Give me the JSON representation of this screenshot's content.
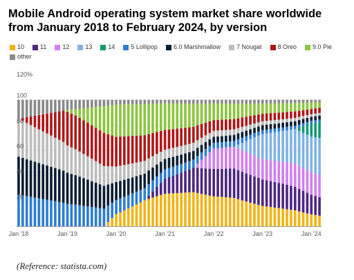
{
  "chart_data": {
    "type": "bar",
    "stacked": true,
    "title": "Mobile Android operating system market share worldwide from January 2018 to February 2024, by version",
    "xlabel": "",
    "ylabel": "",
    "ylim": [
      0,
      120
    ],
    "yticks": [
      20,
      40,
      60,
      80,
      100
    ],
    "ytick_labels": [
      "20",
      "40",
      "60",
      "80",
      "100"
    ],
    "ytop_label": "120%",
    "xtick_labels": [
      "Jan '18",
      "Jan '19",
      "Jan '20",
      "Jan '21",
      "Jan '22",
      "Jan '23",
      "Jan '24"
    ],
    "legend_position": "top",
    "grid": true,
    "source_note": "(Reference: statista.com)",
    "colors": {
      "5 Lollipop": "#2d7dd2",
      "6.0 Marshmallow": "#0b1e33",
      "7 Nougat": "#bcbcbc",
      "8 Oreo": "#b01717",
      "9.0 Pie": "#8cc63f",
      "10": "#f2b418",
      "11": "#4b2882",
      "12": "#d17ff0",
      "13": "#7fb2e6",
      "14": "#109a73",
      "other": "#8a8a8a"
    },
    "series_anchors": {
      "5 Lollipop": [
        [
          0,
          25
        ],
        [
          12,
          18
        ],
        [
          24,
          12
        ],
        [
          36,
          8
        ],
        [
          48,
          5
        ],
        [
          60,
          3
        ],
        [
          72,
          2
        ],
        [
          74,
          2
        ]
      ],
      "6.0 Marshmallow": [
        [
          0,
          30
        ],
        [
          12,
          25
        ],
        [
          24,
          15
        ],
        [
          36,
          9
        ],
        [
          48,
          5
        ],
        [
          60,
          4
        ],
        [
          72,
          3
        ],
        [
          74,
          3
        ]
      ],
      "7 Nougat": [
        [
          0,
          30
        ],
        [
          12,
          22
        ],
        [
          24,
          13
        ],
        [
          36,
          8
        ],
        [
          48,
          5
        ],
        [
          60,
          3
        ],
        [
          72,
          2
        ],
        [
          74,
          2
        ]
      ],
      "8 Oreo": [
        [
          0,
          0
        ],
        [
          12,
          27
        ],
        [
          24,
          25
        ],
        [
          36,
          17
        ],
        [
          48,
          9
        ],
        [
          60,
          6
        ],
        [
          72,
          4
        ],
        [
          74,
          4
        ]
      ],
      "9.0 Pie": [
        [
          0,
          0
        ],
        [
          11,
          0
        ],
        [
          14,
          5
        ],
        [
          24,
          27
        ],
        [
          36,
          23
        ],
        [
          48,
          14
        ],
        [
          60,
          8
        ],
        [
          72,
          5
        ],
        [
          74,
          4
        ]
      ],
      "10": [
        [
          0,
          0
        ],
        [
          21,
          0
        ],
        [
          24,
          10
        ],
        [
          36,
          28
        ],
        [
          48,
          25
        ],
        [
          60,
          16
        ],
        [
          72,
          9
        ],
        [
          74,
          8
        ]
      ],
      "11": [
        [
          0,
          0
        ],
        [
          31,
          0
        ],
        [
          36,
          13
        ],
        [
          48,
          23
        ],
        [
          60,
          21
        ],
        [
          72,
          15
        ],
        [
          74,
          14
        ]
      ],
      "12": [
        [
          0,
          0
        ],
        [
          43,
          0
        ],
        [
          48,
          17
        ],
        [
          60,
          16
        ],
        [
          72,
          17
        ],
        [
          74,
          17
        ]
      ],
      "13": [
        [
          0,
          0
        ],
        [
          53,
          0
        ],
        [
          60,
          20
        ],
        [
          72,
          27
        ],
        [
          74,
          28
        ]
      ],
      "14": [
        [
          0,
          0
        ],
        [
          68,
          0
        ],
        [
          72,
          10
        ],
        [
          74,
          12
        ]
      ],
      "other": [
        [
          0,
          15
        ],
        [
          12,
          8
        ],
        [
          24,
          4
        ],
        [
          36,
          3
        ],
        [
          48,
          3
        ],
        [
          60,
          3
        ],
        [
          72,
          2
        ],
        [
          74,
          2
        ]
      ]
    },
    "total_months": 74
  }
}
